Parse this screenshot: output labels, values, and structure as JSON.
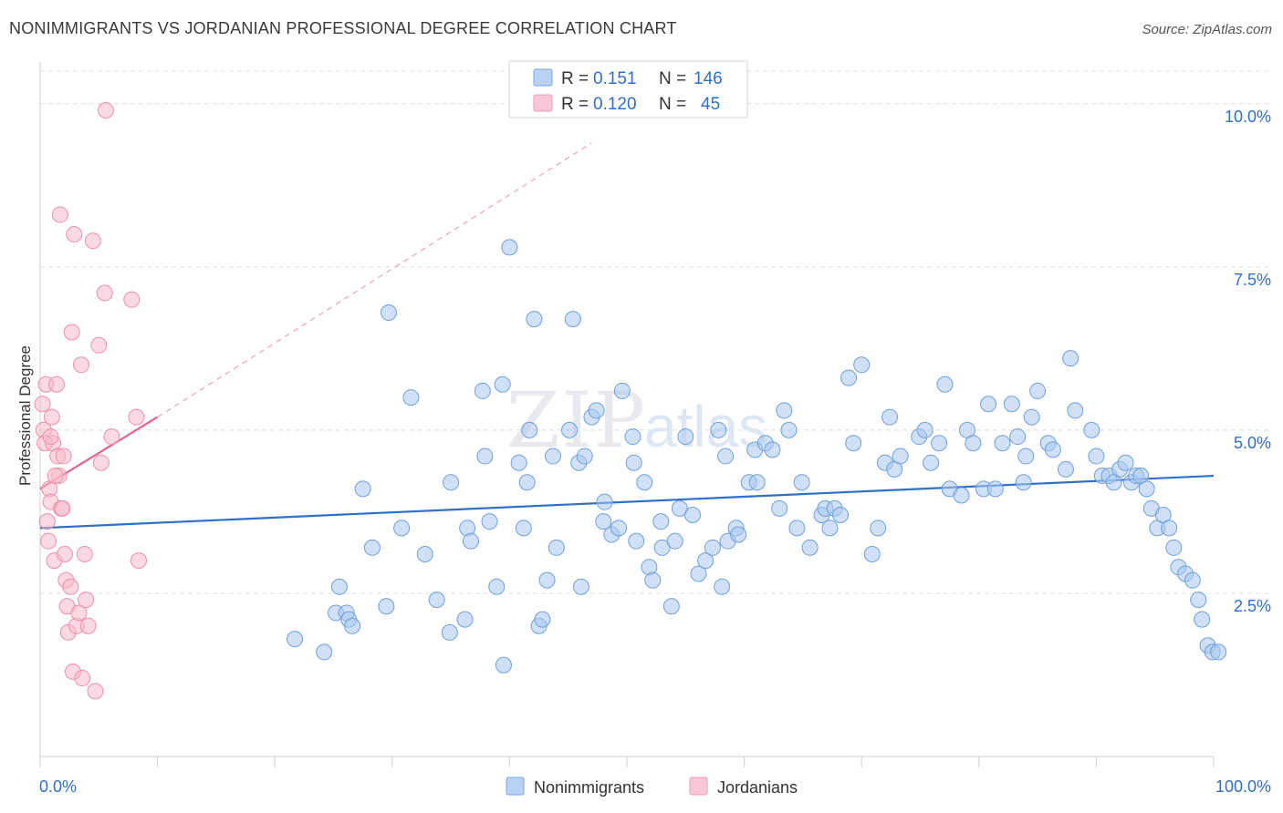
{
  "title": "NONIMMIGRANTS VS JORDANIAN PROFESSIONAL DEGREE CORRELATION CHART",
  "source": "Source: ZipAtlas.com",
  "watermark": {
    "zip": "ZIP",
    "atlas": "atlas"
  },
  "legend_top": [
    {
      "r_label": "R =",
      "r_value": "0.151",
      "n_label": "N =",
      "n_value": "146",
      "color": "#a9c8f0"
    },
    {
      "r_label": "R =",
      "r_value": "0.120",
      "n_label": "N =",
      "n_value": "45",
      "color": "#f7b9cb"
    }
  ],
  "chart_data": {
    "type": "scatter",
    "title": "NONIMMIGRANTS VS JORDANIAN PROFESSIONAL DEGREE CORRELATION CHART",
    "xlabel": "",
    "ylabel": "Professional Degree",
    "x_tick_labels": [
      "0.0%",
      "100.0%"
    ],
    "y_tick_labels": [
      "2.5%",
      "5.0%",
      "7.5%",
      "10.0%"
    ],
    "y_ticks": [
      2.5,
      5.0,
      7.5,
      10.0
    ],
    "xlim": [
      0,
      100
    ],
    "ylim": [
      0,
      10.5
    ],
    "grid": true,
    "legend_placement": "bottom-center",
    "series": [
      {
        "name": "Nonimmigrants",
        "color": "#a9c8f0",
        "stroke": "#6f9fd8",
        "trend": {
          "x": [
            0,
            100
          ],
          "y": [
            3.5,
            4.3
          ],
          "color": "#2e6fc9"
        },
        "points": [
          [
            21.7,
            1.8
          ],
          [
            24.2,
            1.6
          ],
          [
            25.2,
            2.2
          ],
          [
            25.5,
            2.6
          ],
          [
            26.1,
            2.2
          ],
          [
            26.3,
            2.1
          ],
          [
            26.6,
            2.0
          ],
          [
            27.5,
            4.1
          ],
          [
            28.3,
            3.2
          ],
          [
            29.5,
            2.3
          ],
          [
            29.7,
            6.8
          ],
          [
            30.8,
            3.5
          ],
          [
            31.6,
            5.5
          ],
          [
            32.8,
            3.1
          ],
          [
            33.8,
            2.4
          ],
          [
            35.0,
            4.2
          ],
          [
            34.9,
            1.9
          ],
          [
            36.2,
            2.1
          ],
          [
            36.4,
            3.5
          ],
          [
            36.7,
            3.3
          ],
          [
            37.7,
            5.6
          ],
          [
            37.9,
            4.6
          ],
          [
            38.3,
            3.6
          ],
          [
            38.9,
            2.6
          ],
          [
            39.4,
            5.7
          ],
          [
            39.5,
            1.4
          ],
          [
            40.0,
            7.8
          ],
          [
            40.8,
            4.5
          ],
          [
            41.2,
            3.5
          ],
          [
            41.5,
            4.2
          ],
          [
            41.7,
            5.0
          ],
          [
            42.1,
            6.7
          ],
          [
            42.5,
            2.0
          ],
          [
            42.8,
            2.1
          ],
          [
            43.2,
            2.7
          ],
          [
            43.7,
            4.6
          ],
          [
            44.0,
            3.2
          ],
          [
            45.1,
            5.0
          ],
          [
            45.4,
            6.7
          ],
          [
            45.9,
            4.5
          ],
          [
            46.1,
            2.6
          ],
          [
            46.4,
            4.6
          ],
          [
            47.0,
            5.2
          ],
          [
            47.4,
            5.3
          ],
          [
            48.0,
            3.6
          ],
          [
            48.1,
            3.9
          ],
          [
            48.7,
            3.4
          ],
          [
            49.3,
            3.5
          ],
          [
            49.6,
            5.6
          ],
          [
            50.5,
            4.9
          ],
          [
            50.6,
            4.5
          ],
          [
            50.8,
            3.3
          ],
          [
            51.5,
            4.2
          ],
          [
            51.9,
            2.9
          ],
          [
            52.2,
            2.7
          ],
          [
            52.9,
            3.6
          ],
          [
            53.0,
            3.2
          ],
          [
            53.8,
            2.3
          ],
          [
            54.1,
            3.3
          ],
          [
            54.5,
            3.8
          ],
          [
            55.0,
            4.9
          ],
          [
            55.6,
            3.7
          ],
          [
            56.1,
            2.8
          ],
          [
            56.7,
            3.0
          ],
          [
            57.3,
            3.2
          ],
          [
            57.8,
            5.0
          ],
          [
            58.1,
            2.6
          ],
          [
            58.4,
            4.6
          ],
          [
            58.6,
            3.3
          ],
          [
            59.3,
            3.5
          ],
          [
            59.5,
            3.4
          ],
          [
            60.4,
            4.2
          ],
          [
            60.9,
            4.7
          ],
          [
            61.1,
            4.2
          ],
          [
            61.8,
            4.8
          ],
          [
            62.4,
            4.7
          ],
          [
            63.0,
            3.8
          ],
          [
            63.4,
            5.3
          ],
          [
            63.8,
            5.0
          ],
          [
            64.5,
            3.5
          ],
          [
            64.9,
            4.2
          ],
          [
            65.6,
            3.2
          ],
          [
            66.6,
            3.7
          ],
          [
            66.9,
            3.8
          ],
          [
            67.3,
            3.5
          ],
          [
            67.7,
            3.8
          ],
          [
            68.2,
            3.7
          ],
          [
            68.9,
            5.8
          ],
          [
            69.3,
            4.8
          ],
          [
            70.0,
            6.0
          ],
          [
            70.9,
            3.1
          ],
          [
            71.4,
            3.5
          ],
          [
            72.0,
            4.5
          ],
          [
            72.4,
            5.2
          ],
          [
            72.8,
            4.4
          ],
          [
            73.3,
            4.6
          ],
          [
            74.9,
            4.9
          ],
          [
            75.4,
            5.0
          ],
          [
            75.9,
            4.5
          ],
          [
            76.6,
            4.8
          ],
          [
            77.1,
            5.7
          ],
          [
            77.5,
            4.1
          ],
          [
            78.5,
            4.0
          ],
          [
            79.0,
            5.0
          ],
          [
            79.5,
            4.8
          ],
          [
            80.4,
            4.1
          ],
          [
            80.8,
            5.4
          ],
          [
            81.4,
            4.1
          ],
          [
            82.0,
            4.8
          ],
          [
            82.8,
            5.4
          ],
          [
            83.3,
            4.9
          ],
          [
            83.8,
            4.2
          ],
          [
            84.0,
            4.6
          ],
          [
            84.5,
            5.2
          ],
          [
            85.0,
            5.6
          ],
          [
            85.9,
            4.8
          ],
          [
            86.3,
            4.7
          ],
          [
            87.4,
            4.4
          ],
          [
            87.8,
            6.1
          ],
          [
            88.2,
            5.3
          ],
          [
            89.6,
            5.0
          ],
          [
            90.0,
            4.6
          ],
          [
            90.5,
            4.3
          ],
          [
            91.1,
            4.3
          ],
          [
            91.5,
            4.2
          ],
          [
            92.0,
            4.4
          ],
          [
            92.5,
            4.5
          ],
          [
            93.0,
            4.2
          ],
          [
            93.4,
            4.3
          ],
          [
            93.8,
            4.3
          ],
          [
            94.3,
            4.1
          ],
          [
            94.7,
            3.8
          ],
          [
            95.2,
            3.5
          ],
          [
            95.7,
            3.7
          ],
          [
            96.2,
            3.5
          ],
          [
            96.6,
            3.2
          ],
          [
            97.0,
            2.9
          ],
          [
            97.6,
            2.8
          ],
          [
            98.2,
            2.7
          ],
          [
            98.7,
            2.4
          ],
          [
            99.0,
            2.1
          ],
          [
            99.5,
            1.7
          ],
          [
            99.9,
            1.6
          ],
          [
            100.4,
            1.6
          ]
        ]
      },
      {
        "name": "Jordanians",
        "color": "#f7b9cb",
        "stroke": "#ec8fab",
        "trend": {
          "x": [
            0,
            10
          ],
          "y": [
            4.1,
            5.2
          ],
          "color": "#e5618b",
          "dashed_extension_to": [
            47,
            9.4
          ]
        },
        "points": [
          [
            0.2,
            5.4
          ],
          [
            0.3,
            5.0
          ],
          [
            0.4,
            4.8
          ],
          [
            0.5,
            5.7
          ],
          [
            0.6,
            3.6
          ],
          [
            0.7,
            3.3
          ],
          [
            0.8,
            4.1
          ],
          [
            0.9,
            3.9
          ],
          [
            1.0,
            5.2
          ],
          [
            1.1,
            4.8
          ],
          [
            1.2,
            3.0
          ],
          [
            1.4,
            5.7
          ],
          [
            1.5,
            4.6
          ],
          [
            1.6,
            4.3
          ],
          [
            1.7,
            8.3
          ],
          [
            1.8,
            3.8
          ],
          [
            1.9,
            3.8
          ],
          [
            2.0,
            4.6
          ],
          [
            2.1,
            3.1
          ],
          [
            2.2,
            2.7
          ],
          [
            2.3,
            2.3
          ],
          [
            2.4,
            1.9
          ],
          [
            2.6,
            2.6
          ],
          [
            2.7,
            6.5
          ],
          [
            2.8,
            1.3
          ],
          [
            2.9,
            8.0
          ],
          [
            3.1,
            2.0
          ],
          [
            3.3,
            2.2
          ],
          [
            3.5,
            6.0
          ],
          [
            3.6,
            1.2
          ],
          [
            3.8,
            3.1
          ],
          [
            3.9,
            2.4
          ],
          [
            4.1,
            2.0
          ],
          [
            4.5,
            7.9
          ],
          [
            4.7,
            1.0
          ],
          [
            5.0,
            6.3
          ],
          [
            5.2,
            4.5
          ],
          [
            5.6,
            9.9
          ],
          [
            5.5,
            7.1
          ],
          [
            6.1,
            4.9
          ],
          [
            7.8,
            7.0
          ],
          [
            8.4,
            3.0
          ],
          [
            8.2,
            5.2
          ],
          [
            1.3,
            4.3
          ],
          [
            0.9,
            4.9
          ]
        ]
      }
    ]
  }
}
